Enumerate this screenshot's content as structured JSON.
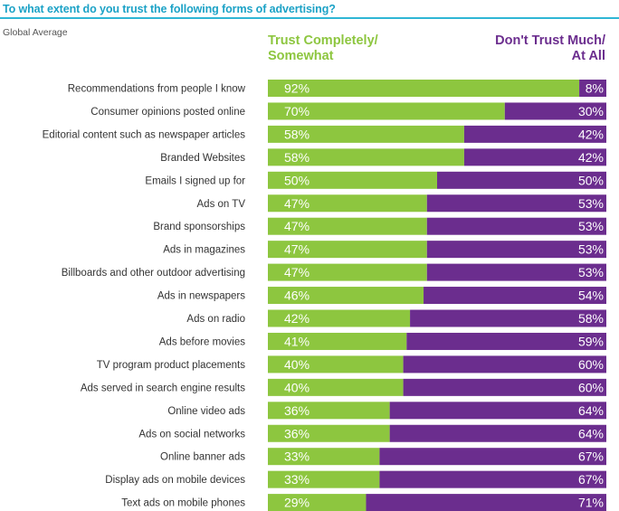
{
  "header": {
    "title": "To what extent do you trust the following forms of advertising?",
    "subtitle": "Global Average"
  },
  "legend": {
    "trust_line1": "Trust Completely/",
    "trust_line2": "Somewhat",
    "distrust_line1": "Don't Trust Much/",
    "distrust_line2": "At All"
  },
  "colors": {
    "trust": "#8dc63f",
    "distrust": "#6b2d8e",
    "title": "#1ca2c6",
    "rule": "#2fb6d5"
  },
  "chart_data": {
    "type": "bar",
    "orientation": "horizontal",
    "stacked": true,
    "normalized_percent": true,
    "title": "To what extent do you trust the following forms of advertising?",
    "subtitle": "Global Average",
    "legend_position": "top",
    "categories": [
      "Recommendations from people I know",
      "Consumer opinions posted online",
      "Editorial content such as newspaper articles",
      "Branded Websites",
      "Emails I signed up for",
      "Ads on TV",
      "Brand sponsorships",
      "Ads in magazines",
      "Billboards and other outdoor advertising",
      "Ads in newspapers",
      "Ads on radio",
      "Ads before movies",
      "TV program product placements",
      "Ads served in search engine results",
      "Online video ads",
      "Ads on social networks",
      "Online banner ads",
      "Display ads on mobile devices",
      "Text ads on mobile phones"
    ],
    "series": [
      {
        "name": "Trust Completely/ Somewhat",
        "values": [
          92,
          70,
          58,
          58,
          50,
          47,
          47,
          47,
          47,
          46,
          42,
          41,
          40,
          40,
          36,
          36,
          33,
          33,
          29
        ]
      },
      {
        "name": "Don't Trust Much/ At All",
        "values": [
          8,
          30,
          42,
          42,
          50,
          53,
          53,
          53,
          53,
          54,
          58,
          59,
          60,
          60,
          64,
          64,
          67,
          67,
          71
        ]
      }
    ],
    "value_suffix": "%",
    "xlim": [
      0,
      100
    ]
  }
}
